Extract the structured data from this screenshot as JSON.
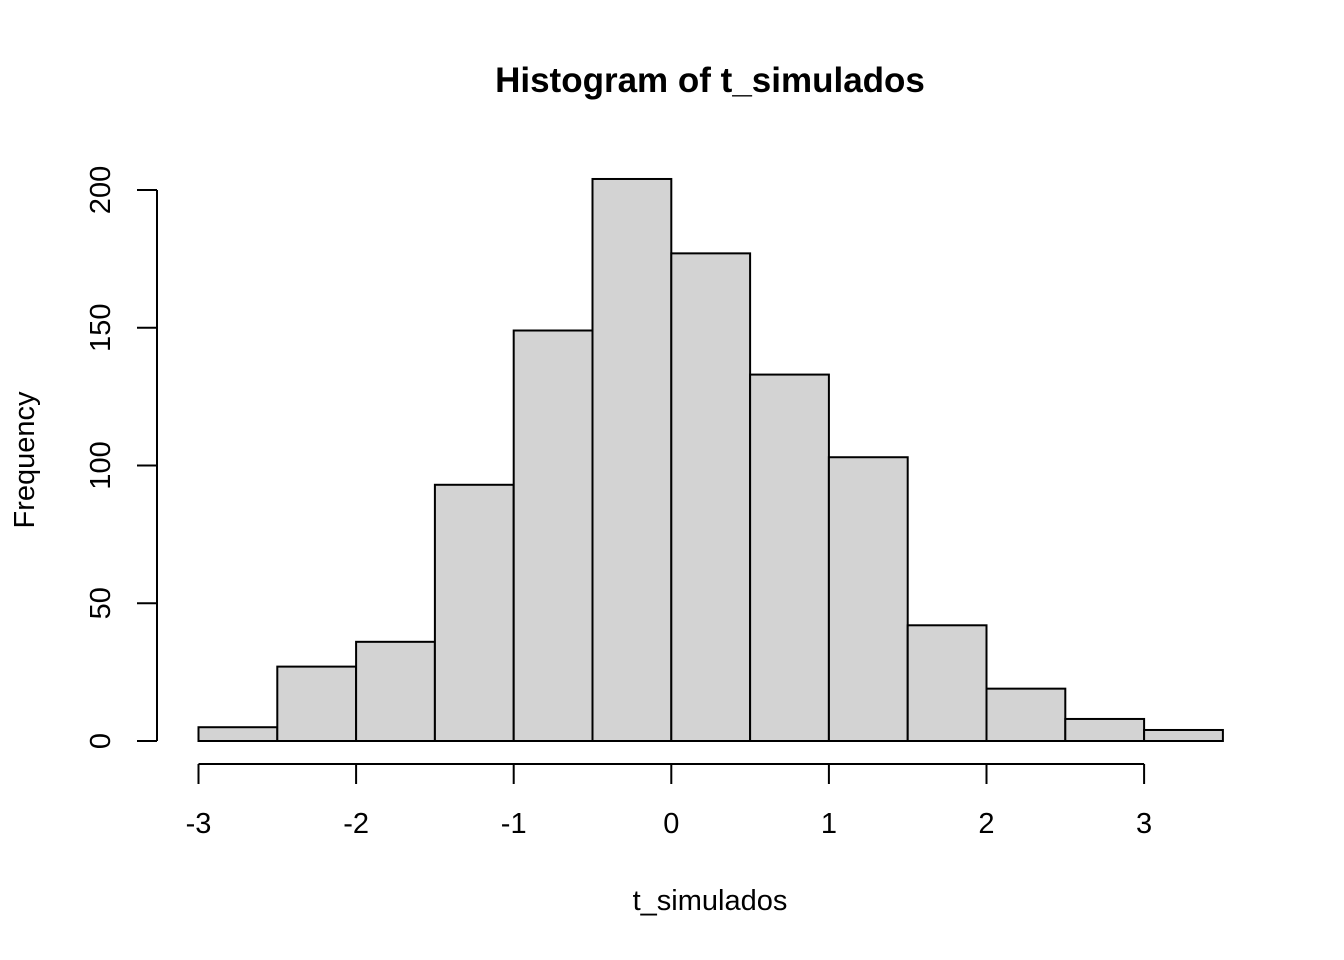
{
  "chart_data": {
    "type": "bar",
    "title": "Histogram of t_simulados",
    "xlabel": "t_simulados",
    "ylabel": "Frequency",
    "bins": [
      {
        "from": -3.0,
        "to": -2.5,
        "count": 5
      },
      {
        "from": -2.5,
        "to": -2.0,
        "count": 27
      },
      {
        "from": -2.0,
        "to": -1.5,
        "count": 36
      },
      {
        "from": -1.5,
        "to": -1.0,
        "count": 93
      },
      {
        "from": -1.0,
        "to": -0.5,
        "count": 149
      },
      {
        "from": -0.5,
        "to": 0.0,
        "count": 204
      },
      {
        "from": 0.0,
        "to": 0.5,
        "count": 177
      },
      {
        "from": 0.5,
        "to": 1.0,
        "count": 133
      },
      {
        "from": 1.0,
        "to": 1.5,
        "count": 103
      },
      {
        "from": 1.5,
        "to": 2.0,
        "count": 42
      },
      {
        "from": 2.0,
        "to": 2.5,
        "count": 19
      },
      {
        "from": 2.5,
        "to": 3.0,
        "count": 8
      },
      {
        "from": 3.0,
        "to": 3.5,
        "count": 4
      }
    ],
    "xticks": [
      "-3",
      "-2",
      "-1",
      "0",
      "1",
      "2",
      "3"
    ],
    "xtick_values": [
      -3,
      -2,
      -1,
      0,
      1,
      2,
      3
    ],
    "yticks": [
      "0",
      "50",
      "100",
      "150",
      "200"
    ],
    "ytick_values": [
      0,
      50,
      100,
      150,
      200
    ],
    "xlim": [
      -3,
      3.5
    ],
    "ylim": [
      0,
      204
    ],
    "grid": false,
    "bar_fill": "#d3d3d3",
    "bar_stroke": "#000000"
  }
}
